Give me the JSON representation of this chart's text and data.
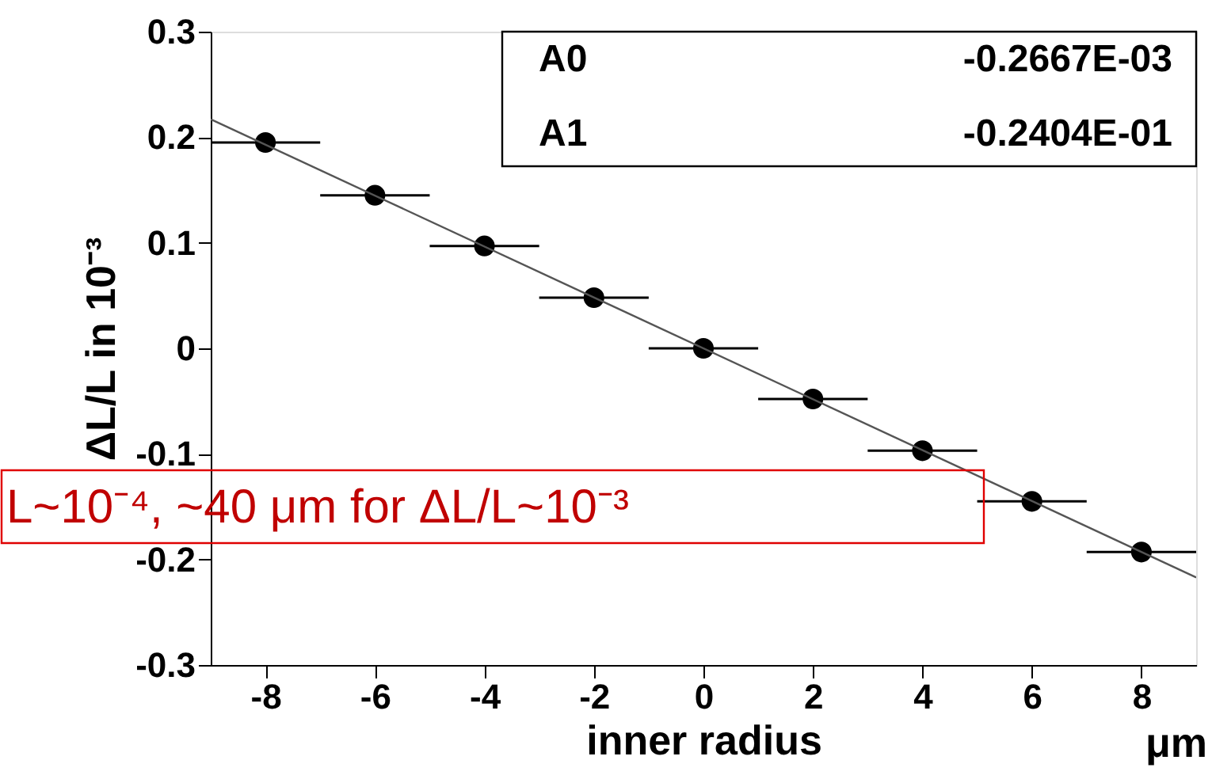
{
  "chart_data": {
    "type": "scatter",
    "xlabel": "inner radius",
    "ylabel": "ΔL/L in 10⁻³",
    "x": [
      -8,
      -6,
      -4,
      -2,
      0,
      2,
      4,
      6,
      8
    ],
    "series": [
      {
        "color": "#000000",
        "marker": "circle",
        "values": [
          0.195,
          0.145,
          0.097,
          0.048,
          0.0,
          -0.048,
          -0.097,
          -0.145,
          -0.193
        ],
        "xerrors": [
          1,
          1,
          1,
          1,
          1,
          1,
          1,
          1,
          1
        ]
      },
      {
        "type": "line",
        "color": "#555555",
        "x": [
          -9,
          9
        ],
        "values": [
          0.217,
          -0.217
        ]
      }
    ],
    "xlim": [
      -9,
      9
    ],
    "xticks": [
      -8,
      -6,
      -4,
      -2,
      0,
      2,
      4,
      6,
      8
    ],
    "ylim": [
      -0.3,
      0.3
    ],
    "yticks": [
      -0.3,
      -0.2,
      -0.1,
      0,
      0.1,
      0.2,
      0.3
    ],
    "grid": false,
    "legend": false,
    "annotations": [
      "A0",
      "-0.2667E-03",
      "A1",
      "-0.2404E-01",
      "μm",
      "L~10⁻⁴, ~40 μm for ΔL/L~10⁻³"
    ]
  }
}
